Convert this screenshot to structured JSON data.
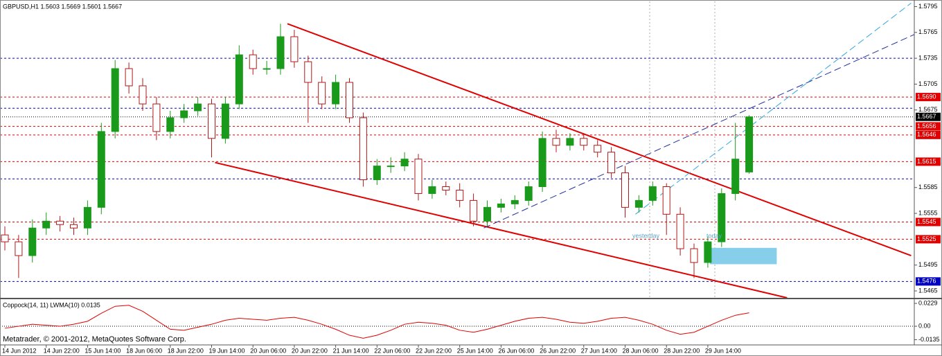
{
  "chart_data": [
    {
      "type": "candlestick",
      "title": "GBPUSD,H1  1.5603 1.5669 1.5601 1.5667",
      "categories": [
        "14 Jun 2012",
        null,
        null,
        "14 Jun 22:00",
        null,
        null,
        "15 Jun 14:00",
        null,
        null,
        "18 Jun 06:00",
        null,
        null,
        "18 Jun 22:00",
        null,
        null,
        "19 Jun 14:00",
        null,
        null,
        "20 Jun 06:00",
        null,
        null,
        "20 Jun 22:00",
        null,
        null,
        "21 Jun 14:00",
        null,
        null,
        "22 Jun 06:00",
        null,
        null,
        "22 Jun 22:00",
        null,
        null,
        "25 Jun 14:00",
        null,
        null,
        "26 Jun 06:00",
        null,
        null,
        "26 Jun 22:00",
        null,
        null,
        "27 Jun 14:00",
        null,
        null,
        "28 Jun 06:00",
        null,
        null,
        "28 Jun 22:00",
        null,
        null,
        "29 Jun 14:00",
        null,
        null,
        null
      ],
      "open": [
        1.553,
        1.5522,
        1.5506,
        1.5538,
        1.5546,
        1.5542,
        1.5538,
        1.5562,
        1.565,
        1.5723,
        1.5703,
        1.5682,
        1.565,
        1.5666,
        1.5674,
        1.5682,
        1.5642,
        1.5682,
        1.5739,
        1.5723,
        1.5723,
        1.576,
        1.5731,
        1.5707,
        1.5682,
        1.5707,
        1.5666,
        1.5594,
        1.561,
        1.561,
        1.5618,
        1.5578,
        1.5586,
        1.5582,
        1.557,
        1.5546,
        1.5562,
        1.5566,
        1.557,
        1.5586,
        1.5642,
        1.5634,
        1.5642,
        1.5634,
        1.5626,
        1.5602,
        1.5562,
        1.557,
        1.5586,
        1.5554,
        1.5514,
        1.5498,
        1.5522,
        1.5578,
        1.5603
      ],
      "high": [
        1.554,
        1.553,
        1.5548,
        1.5556,
        1.5552,
        1.555,
        1.557,
        1.566,
        1.5733,
        1.573,
        1.5712,
        1.569,
        1.5674,
        1.5682,
        1.569,
        1.5688,
        1.569,
        1.575,
        1.5745,
        1.5732,
        1.5775,
        1.5768,
        1.5738,
        1.5714,
        1.5716,
        1.5712,
        1.5672,
        1.5618,
        1.562,
        1.5626,
        1.5624,
        1.5594,
        1.5592,
        1.559,
        1.5578,
        1.557,
        1.5572,
        1.5576,
        1.5592,
        1.565,
        1.5652,
        1.5648,
        1.5648,
        1.564,
        1.5632,
        1.561,
        1.5576,
        1.5592,
        1.559,
        1.5562,
        1.552,
        1.5528,
        1.5584,
        1.566,
        1.5669
      ],
      "low": [
        1.5512,
        1.548,
        1.5498,
        1.553,
        1.5534,
        1.553,
        1.553,
        1.5554,
        1.5642,
        1.5694,
        1.5674,
        1.564,
        1.5642,
        1.566,
        1.5668,
        1.562,
        1.5636,
        1.5676,
        1.5716,
        1.5716,
        1.5716,
        1.5724,
        1.566,
        1.5676,
        1.5676,
        1.566,
        1.5586,
        1.5588,
        1.5602,
        1.5604,
        1.557,
        1.5572,
        1.5576,
        1.5562,
        1.554,
        1.554,
        1.5556,
        1.556,
        1.5564,
        1.558,
        1.5626,
        1.5628,
        1.5628,
        1.562,
        1.5596,
        1.555,
        1.5556,
        1.5564,
        1.553,
        1.5506,
        1.548,
        1.5492,
        1.5516,
        1.557,
        1.5601
      ],
      "close": [
        1.5522,
        1.5506,
        1.5538,
        1.5546,
        1.5542,
        1.5538,
        1.5562,
        1.565,
        1.5723,
        1.5703,
        1.5682,
        1.565,
        1.5666,
        1.5674,
        1.5682,
        1.5642,
        1.5682,
        1.5739,
        1.5723,
        1.5723,
        1.576,
        1.5731,
        1.5707,
        1.5682,
        1.5707,
        1.5666,
        1.5594,
        1.561,
        1.561,
        1.5618,
        1.5578,
        1.5586,
        1.5582,
        1.557,
        1.5546,
        1.5562,
        1.5566,
        1.557,
        1.5586,
        1.5642,
        1.5634,
        1.5642,
        1.5634,
        1.5626,
        1.5602,
        1.5562,
        1.557,
        1.5586,
        1.5554,
        1.5514,
        1.5498,
        1.5522,
        1.5578,
        1.5618,
        1.5667
      ],
      "up_color": "#1a9a1a",
      "down_color": "#b01818",
      "ylim": [
        1.5457,
        1.5801
      ],
      "yticks": [
        1.5465,
        1.5495,
        1.5555,
        1.5585,
        1.5675,
        1.5705,
        1.5735,
        1.5765,
        1.5795
      ],
      "levels": [
        {
          "value": 1.569,
          "label": "1.5690",
          "color": "#e00000"
        },
        {
          "value": 1.5667,
          "label": "1.5667",
          "color": "#000000"
        },
        {
          "value": 1.5656,
          "label": "1.5656",
          "color": "#e00000"
        },
        {
          "value": 1.5646,
          "label": "1.5646",
          "color": "#e00000"
        },
        {
          "value": 1.5615,
          "label": "1.5615",
          "color": "#e00000"
        },
        {
          "value": 1.5545,
          "label": "1.5545",
          "color": "#e00000"
        },
        {
          "value": 1.5525,
          "label": "1.5525",
          "color": "#e00000"
        },
        {
          "value": 1.5476,
          "label": "1.5476",
          "color": "#0000c0"
        },
        {
          "value": 1.5735,
          "color": "#0000c0"
        },
        {
          "value": 1.5677,
          "color": "#0000c0"
        },
        {
          "value": 1.5595,
          "color": "#0000c0"
        }
      ],
      "trendlines": [
        {
          "x": [
            20.5,
            65.75
          ],
          "y": [
            1.5775,
            1.5506
          ],
          "color": "#e00000"
        },
        {
          "x": [
            15.25,
            56.75
          ],
          "y": [
            1.5614,
            1.5457
          ],
          "color": "#e00000"
        },
        {
          "x": [
            34.75,
            67.15
          ],
          "y": [
            1.5538,
            1.5771
          ],
          "color": "#2030a0"
        },
        {
          "x": [
            45.75,
            65.75
          ],
          "y": [
            1.5554,
            1.5799
          ],
          "color": "#30a8e0"
        }
      ],
      "zones": [
        {
          "x": [
            51.15,
            56.0
          ],
          "y": [
            1.5496,
            1.5515
          ],
          "color": "#87ceeb"
        }
      ],
      "annotations": [
        "yesterday",
        "today"
      ]
    },
    {
      "type": "line",
      "title": "Coppock(14, 11) LWMA(10) 0.0135",
      "values": [
        -0.002,
        0.0,
        0.002,
        0.001,
        0.0,
        0.002,
        0.005,
        0.013,
        0.02,
        0.021,
        0.015,
        0.006,
        -0.003,
        -0.004,
        -0.001,
        0.002,
        0.006,
        0.008,
        0.007,
        0.006,
        0.008,
        0.009,
        0.006,
        0.002,
        -0.003,
        -0.009,
        -0.012,
        -0.009,
        -0.004,
        0.002,
        0.004,
        0.003,
        0.001,
        -0.004,
        -0.006,
        -0.003,
        0.001,
        0.005,
        0.008,
        0.009,
        0.007,
        0.004,
        0.003,
        0.005,
        0.008,
        0.009,
        0.006,
        0.002,
        -0.004,
        -0.008,
        -0.006,
        0.0,
        0.006,
        0.011,
        0.0135
      ],
      "color": "#e00000",
      "ylim": [
        -0.018,
        0.0271
      ],
      "yticks": [
        -0.0135,
        {
          "value": 0,
          "label": "0.00"
        },
        0.0229
      ],
      "levels": [
        {
          "value": 0,
          "color": "#000000"
        }
      ],
      "watermark": "Metatrader, © 2001-2012, MetaQuotes Software Corp."
    }
  ]
}
